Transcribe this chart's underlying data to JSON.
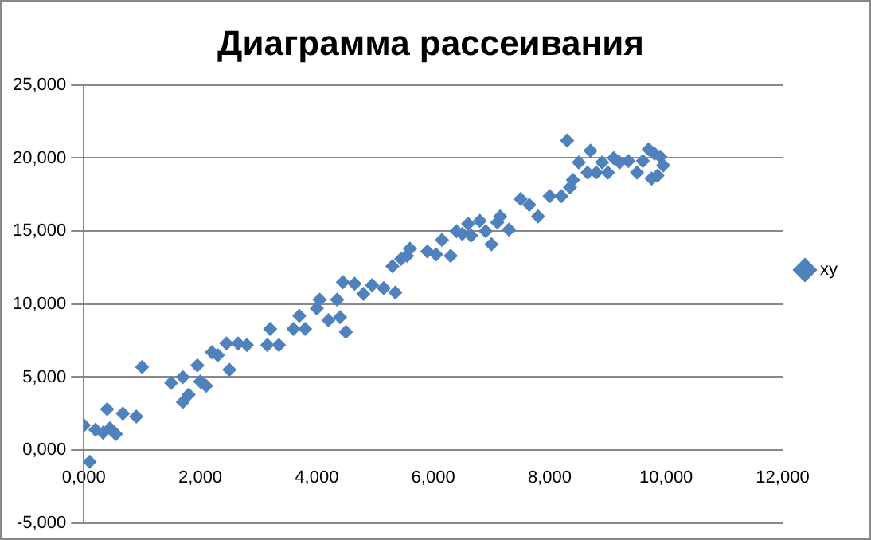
{
  "chart_data": {
    "type": "scatter",
    "title": "Диаграмма рассеивания",
    "xlim": [
      0,
      12
    ],
    "xticks": [
      {
        "value": 0,
        "label": "0,000"
      },
      {
        "value": 2,
        "label": "2,000"
      },
      {
        "value": 4,
        "label": "4,000"
      },
      {
        "value": 6,
        "label": "6,000"
      },
      {
        "value": 8,
        "label": "8,000"
      },
      {
        "value": 10,
        "label": "10,000"
      },
      {
        "value": 12,
        "label": "12,000"
      }
    ],
    "ylim": [
      -5,
      25
    ],
    "yticks": [
      {
        "value": -5,
        "label": "-5,000"
      },
      {
        "value": 0,
        "label": "0,000"
      },
      {
        "value": 5,
        "label": "5,000"
      },
      {
        "value": 10,
        "label": "10,000"
      },
      {
        "value": 15,
        "label": "15,000"
      },
      {
        "value": 20,
        "label": "20,000"
      },
      {
        "value": 25,
        "label": "25,000"
      }
    ],
    "grid": "y",
    "legend": "right",
    "marker": "diamond",
    "series": [
      {
        "name": "xy",
        "color": "#4f81bd",
        "x": [
          0,
          0.1,
          0.2,
          0.33,
          0.4,
          0.45,
          0.55,
          0.67,
          0.9,
          1.0,
          1.5,
          1.7,
          1.7,
          1.8,
          1.95,
          2.0,
          2.1,
          2.2,
          2.3,
          2.45,
          2.5,
          2.65,
          2.8,
          3.15,
          3.2,
          3.35,
          3.6,
          3.7,
          3.8,
          4.0,
          4.05,
          4.2,
          4.35,
          4.4,
          4.45,
          4.5,
          4.65,
          4.8,
          4.95,
          5.15,
          5.3,
          5.35,
          5.45,
          5.55,
          5.6,
          5.9,
          6.05,
          6.15,
          6.3,
          6.4,
          6.5,
          6.6,
          6.65,
          6.8,
          6.9,
          7.0,
          7.1,
          7.15,
          7.3,
          7.5,
          7.65,
          7.8,
          8.0,
          8.2,
          8.3,
          8.35,
          8.4,
          8.5,
          8.65,
          8.7,
          8.8,
          8.9,
          9.0,
          9.1,
          9.2,
          9.35,
          9.5,
          9.6,
          9.7,
          9.75,
          9.8,
          9.85,
          9.9,
          9.95
        ],
        "values": [
          1.7,
          -0.8,
          1.4,
          1.2,
          2.8,
          1.5,
          1.1,
          2.5,
          2.3,
          5.7,
          4.6,
          5.0,
          3.3,
          3.8,
          5.8,
          4.7,
          4.4,
          6.7,
          6.5,
          7.3,
          5.5,
          7.3,
          7.2,
          7.2,
          8.3,
          7.2,
          8.3,
          9.2,
          8.3,
          9.7,
          10.3,
          8.9,
          10.3,
          9.1,
          11.5,
          8.1,
          11.4,
          10.7,
          11.3,
          11.1,
          12.6,
          10.8,
          13.1,
          13.3,
          13.8,
          13.6,
          13.4,
          14.4,
          13.3,
          15.0,
          14.8,
          15.5,
          14.7,
          15.7,
          15.0,
          14.1,
          15.6,
          16.0,
          15.1,
          17.2,
          16.8,
          16.0,
          17.4,
          17.4,
          21.2,
          18.0,
          18.5,
          19.7,
          19.0,
          20.5,
          19.0,
          19.7,
          19.0,
          20.0,
          19.7,
          19.8,
          19.0,
          19.8,
          20.6,
          18.6,
          20.3,
          18.8,
          20.1,
          19.5
        ]
      }
    ]
  }
}
